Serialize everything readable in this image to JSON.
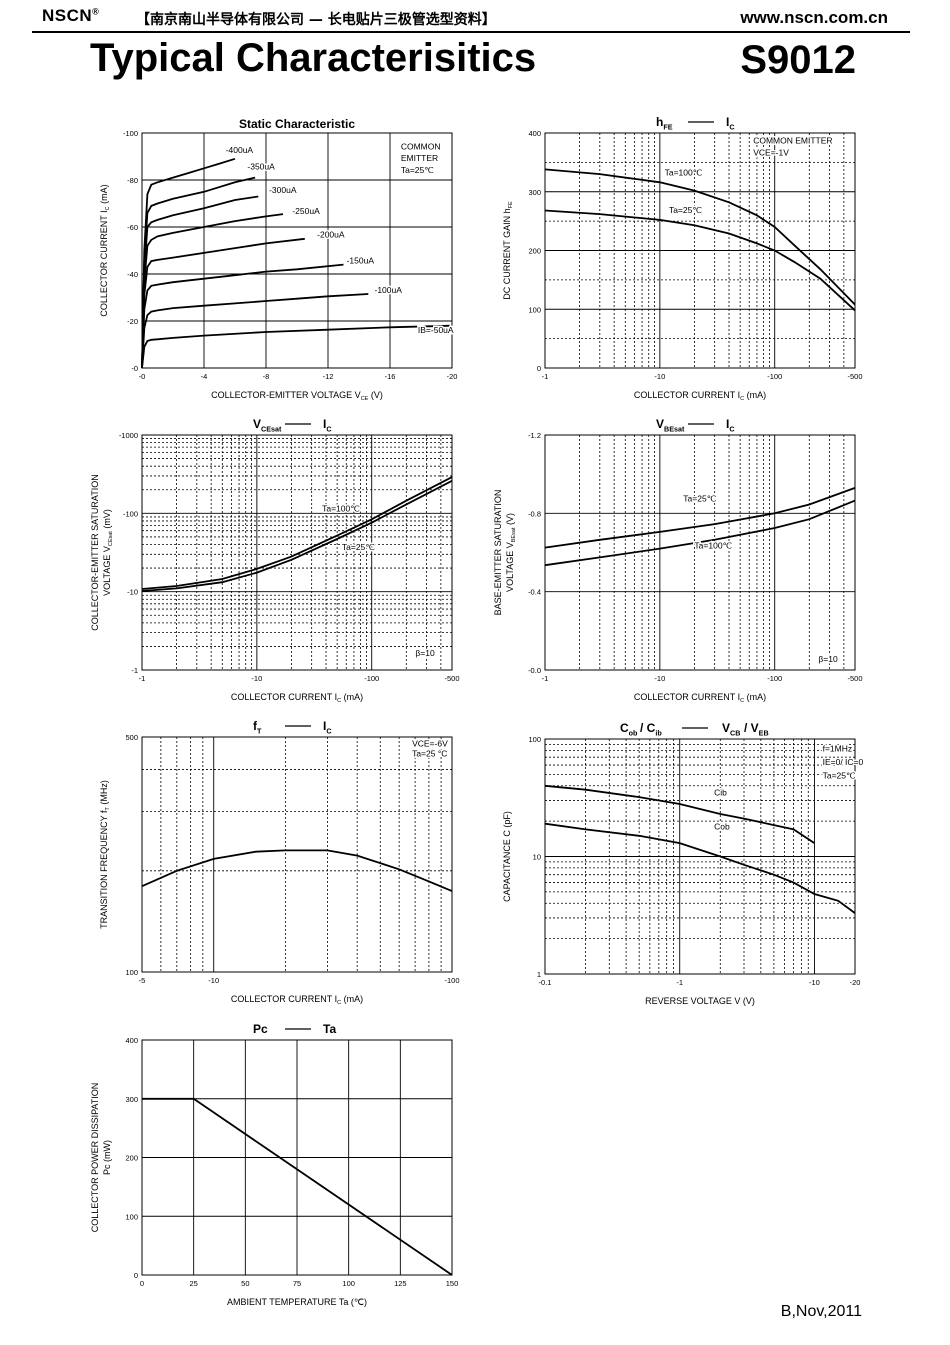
{
  "header": {
    "logo": "NSCN",
    "logo_mark": "®",
    "subtitle": "【南京南山半导体有限公司 — 长电贴片三极管选型资料】",
    "url": "www.nscn.com.cn"
  },
  "page_title": "Typical Characterisitics",
  "part_number": "S9012",
  "footer": "B,Nov,2011",
  "chart_data": [
    {
      "id": "static",
      "type": "line",
      "title": "Static Characteristic",
      "xlabel": "COLLECTOR-EMITTER VOLTAGE",
      "xlabel_sym": "V",
      "xlabel_sub": "CE",
      "xlabel_unit": "(V)",
      "ylabel": "COLLECTOR CURRENT",
      "ylabel_sym": "I",
      "ylabel_sub": "C",
      "ylabel_unit": "(mA)",
      "xscale": "linear",
      "yscale": "linear",
      "xlim": [
        0,
        20
      ],
      "ylim": [
        0,
        100
      ],
      "xticks": [
        0,
        4,
        8,
        12,
        16,
        20
      ],
      "xticklabels": [
        "-0",
        "-4",
        "-8",
        "-12",
        "-16",
        "-20"
      ],
      "yticks": [
        0,
        20,
        40,
        60,
        80,
        100
      ],
      "yticklabels": [
        "-0",
        "-20",
        "-40",
        "-60",
        "-80",
        "-100"
      ],
      "annotations": [
        {
          "text": "COMMON",
          "x": 16.7,
          "y": 93
        },
        {
          "text": "EMITTER",
          "x": 16.7,
          "y": 88
        },
        {
          "text": "Ta=25℃",
          "x": 16.7,
          "y": 83
        },
        {
          "text": "-400uA",
          "x": 5.4,
          "y": 91.5
        },
        {
          "text": "-350uA",
          "x": 6.8,
          "y": 84.5
        },
        {
          "text": "-300uA",
          "x": 8.2,
          "y": 74.5
        },
        {
          "text": "-250uA",
          "x": 9.7,
          "y": 65.5
        },
        {
          "text": "-200uA",
          "x": 11.3,
          "y": 55.5
        },
        {
          "text": "-150uA",
          "x": 13.2,
          "y": 44.5
        },
        {
          "text": "-100uA",
          "x": 15.0,
          "y": 32
        },
        {
          "text": "IB=-50uA",
          "x": 17.8,
          "y": 15
        }
      ],
      "series": [
        {
          "name": "-400uA",
          "x": [
            0,
            0.15,
            0.35,
            0.6,
            1,
            2,
            3,
            4,
            5,
            6
          ],
          "y": [
            0,
            50,
            74,
            78,
            79,
            81,
            83,
            85,
            87,
            89
          ]
        },
        {
          "name": "-350uA",
          "x": [
            0,
            0.15,
            0.35,
            0.6,
            1,
            2,
            4,
            6,
            7.3
          ],
          "y": [
            0,
            46,
            66,
            69,
            70,
            72,
            75,
            79,
            81
          ]
        },
        {
          "name": "-300uA",
          "x": [
            0,
            0.15,
            0.35,
            0.6,
            1,
            2,
            4,
            6,
            7.5
          ],
          "y": [
            0,
            42,
            60,
            62,
            63,
            65,
            68,
            71.5,
            73
          ]
        },
        {
          "name": "-250uA",
          "x": [
            0,
            0.15,
            0.35,
            0.6,
            1,
            2,
            4,
            6,
            8,
            9.1
          ],
          "y": [
            0,
            37,
            52,
            54.5,
            56,
            57.5,
            60,
            62.5,
            64.5,
            65.5
          ]
        },
        {
          "name": "-200uA",
          "x": [
            0,
            0.15,
            0.35,
            0.6,
            1,
            2,
            4,
            6,
            8,
            10.5
          ],
          "y": [
            0,
            31,
            43,
            45.5,
            46,
            47,
            49,
            51,
            53,
            55
          ]
        },
        {
          "name": "-150uA",
          "x": [
            0,
            0.15,
            0.35,
            0.6,
            1,
            2,
            4,
            6,
            8,
            10,
            13
          ],
          "y": [
            0,
            25,
            33,
            35,
            35.5,
            36.5,
            38,
            39.5,
            41,
            42,
            44
          ]
        },
        {
          "name": "-100uA",
          "x": [
            0,
            0.15,
            0.35,
            0.6,
            1,
            2,
            4,
            6,
            8,
            10,
            12,
            14.6
          ],
          "y": [
            0,
            17,
            22.5,
            24,
            24.5,
            25.5,
            26.5,
            27.5,
            28.5,
            29.5,
            30.5,
            31.5
          ]
        },
        {
          "name": "-50uA",
          "x": [
            0,
            0.15,
            0.35,
            0.6,
            1,
            2,
            4,
            8,
            12,
            16,
            20
          ],
          "y": [
            0,
            9,
            11.5,
            12,
            12.2,
            12.8,
            13.8,
            15.3,
            16.3,
            17.3,
            18
          ]
        }
      ]
    },
    {
      "id": "hfe",
      "type": "line",
      "title": "hFE — IC",
      "title_left": "h",
      "title_left_sub": "FE",
      "title_right": "I",
      "title_right_sub": "C",
      "xlabel": "COLLECTOR CURRENT",
      "xlabel_sym": "I",
      "xlabel_sub": "C",
      "xlabel_unit": "(mA)",
      "ylabel": "DC CURRENT GAIN",
      "ylabel_sym": "h",
      "ylabel_sub": "FE",
      "ylabel_unit": "",
      "xscale": "log",
      "yscale": "linear",
      "xlim": [
        1,
        500
      ],
      "ylim": [
        0,
        400
      ],
      "xticks": [
        1,
        10,
        100,
        500
      ],
      "xticklabels": [
        "-1",
        "-10",
        "-100",
        "-500"
      ],
      "yticks": [
        0,
        100,
        200,
        300,
        400
      ],
      "yticklabels": [
        "0",
        "100",
        "200",
        "300",
        "400"
      ],
      "ylinear_dashed": [
        50,
        150,
        250,
        350
      ],
      "annotations": [
        {
          "text": "COMMON EMITTER",
          "x": 65,
          "y": 382
        },
        {
          "text": "VCE=-1V",
          "x": 65,
          "y": 362
        },
        {
          "text": "Ta=100℃",
          "x": 11,
          "y": 328
        },
        {
          "text": "Ta=25℃",
          "x": 12,
          "y": 264
        }
      ],
      "series": [
        {
          "name": "Ta=100℃",
          "x": [
            1,
            3,
            10,
            20,
            40,
            70,
            100,
            150,
            250,
            500
          ],
          "y": [
            338,
            330,
            316,
            302,
            282,
            260,
            240,
            208,
            168,
            108
          ]
        },
        {
          "name": "Ta=25℃",
          "x": [
            1,
            3,
            10,
            20,
            40,
            70,
            100,
            150,
            250,
            500
          ],
          "y": [
            268,
            262,
            252,
            243,
            229,
            212,
            200,
            180,
            152,
            98
          ]
        }
      ]
    },
    {
      "id": "vcesat",
      "type": "line",
      "title": "VCEsat — IC",
      "title_left": "V",
      "title_left_sub": "CEsat",
      "title_right": "I",
      "title_right_sub": "C",
      "xlabel": "COLLECTOR CURRENT",
      "xlabel_sym": "I",
      "xlabel_sub": "C",
      "xlabel_unit": "(mA)",
      "ylabel": "COLLECTOR-EMITTER SATURATION",
      "ylabel2": "VOLTAGE",
      "ylabel_sym": "V",
      "ylabel_sub": "CEsat",
      "ylabel_unit": "(mV)",
      "xscale": "log",
      "yscale": "log",
      "xlim": [
        1,
        500
      ],
      "ylim": [
        1,
        1000
      ],
      "xticks": [
        1,
        10,
        100,
        500
      ],
      "xticklabels": [
        "-1",
        "-10",
        "-100",
        "-500"
      ],
      "yticks": [
        1,
        10,
        100,
        1000
      ],
      "yticklabels": [
        "-1",
        "-10",
        "-100",
        "-1000"
      ],
      "annotations": [
        {
          "text": "Ta=100℃",
          "x": 37,
          "y": 105
        },
        {
          "text": "Ta=25℃",
          "x": 55,
          "y": 34
        },
        {
          "text": "β=10",
          "x": 240,
          "y": 1.5
        }
      ],
      "series": [
        {
          "name": "Ta=100℃",
          "x": [
            1,
            2,
            5,
            10,
            20,
            50,
            100,
            200,
            500
          ],
          "y": [
            10.8,
            11.8,
            14.5,
            19.5,
            28,
            52,
            84,
            145,
            290
          ]
        },
        {
          "name": "Ta=25℃",
          "x": [
            1,
            2,
            5,
            10,
            20,
            50,
            100,
            200,
            500
          ],
          "y": [
            10.2,
            11.0,
            13.2,
            17.5,
            25.5,
            47,
            76,
            130,
            260
          ]
        }
      ]
    },
    {
      "id": "vbesat",
      "type": "line",
      "title": "VBEsat — IC",
      "title_left": "V",
      "title_left_sub": "BEsat",
      "title_right": "I",
      "title_right_sub": "C",
      "xlabel": "COLLECTOR CURRENT",
      "xlabel_sym": "I",
      "xlabel_sub": "C",
      "xlabel_unit": "(mA)",
      "ylabel": "BASE-EMITTER SATURATION",
      "ylabel2": "VOLTAGE",
      "ylabel_sym": "V",
      "ylabel_sub": "BEsat",
      "ylabel_unit": "(V)",
      "xscale": "log",
      "yscale": "linear",
      "xlim": [
        1,
        500
      ],
      "ylim": [
        0,
        1.2
      ],
      "xticks": [
        1,
        10,
        100,
        500
      ],
      "xticklabels": [
        "-1",
        "-10",
        "-100",
        "-500"
      ],
      "yticks": [
        0,
        0.4,
        0.8,
        1.2
      ],
      "yticklabels": [
        "-0.0",
        "-0.4",
        "-0.8",
        "-1.2"
      ],
      "annotations": [
        {
          "text": "Ta=25℃",
          "x": 16,
          "y": 0.86
        },
        {
          "text": "Ta=100℃",
          "x": 20,
          "y": 0.62
        },
        {
          "text": "β=10",
          "x": 240,
          "y": 0.04
        }
      ],
      "series": [
        {
          "name": "Ta=25℃",
          "x": [
            1,
            3,
            10,
            30,
            100,
            200,
            500
          ],
          "y": [
            0.625,
            0.665,
            0.705,
            0.745,
            0.8,
            0.845,
            0.93
          ]
        },
        {
          "name": "Ta=100℃",
          "x": [
            1,
            3,
            10,
            30,
            100,
            200,
            500
          ],
          "y": [
            0.535,
            0.575,
            0.62,
            0.665,
            0.725,
            0.77,
            0.865
          ]
        }
      ]
    },
    {
      "id": "ft",
      "type": "line",
      "title": "fT — IC",
      "title_left": "f",
      "title_left_sub": "T",
      "title_right": "I",
      "title_right_sub": "C",
      "xlabel": "COLLECTOR CURRENT",
      "xlabel_sym": "I",
      "xlabel_sub": "C",
      "xlabel_unit": "(mA)",
      "ylabel": "TRANSITION FREQUENCY",
      "ylabel_sym": "f",
      "ylabel_sub": "T",
      "ylabel_unit": "(MHz)",
      "xscale": "log",
      "yscale": "log",
      "xlim": [
        5,
        100
      ],
      "ylim": [
        100,
        500
      ],
      "xticks": [
        5,
        10,
        100
      ],
      "xticklabels": [
        "-5",
        "-10",
        "-100"
      ],
      "yticks": [
        100,
        500
      ],
      "yticklabels": [
        "100",
        "500"
      ],
      "annotations": [
        {
          "text": "VCE=-6V",
          "x": 68,
          "y": 468
        },
        {
          "text": "Ta=25 °C",
          "x": 68,
          "y": 438
        }
      ],
      "series": [
        {
          "name": "fT",
          "x": [
            5,
            7,
            10,
            15,
            20,
            30,
            40,
            60,
            80,
            100
          ],
          "y": [
            180,
            200,
            217,
            228,
            230,
            230,
            222,
            202,
            186,
            174
          ]
        }
      ]
    },
    {
      "id": "cap",
      "type": "line",
      "title": "Cob/Cib — VCB/VEB",
      "title_left": "C",
      "title_left_sub": "ob",
      "title_mid": "/ C",
      "title_mid_sub": "ib",
      "title_right": "V",
      "title_right_sub": "CB",
      "title_right2": "/ V",
      "title_right2_sub": "EB",
      "xlabel": "REVERSE VOLTAGE",
      "xlabel_sym": "V",
      "xlabel_sub": "",
      "xlabel_unit": "(V)",
      "ylabel": "CAPACITANCE",
      "ylabel_sym": "C",
      "ylabel_sub": "",
      "ylabel_unit": "(pF)",
      "xscale": "log",
      "yscale": "log",
      "xlim": [
        0.1,
        20
      ],
      "ylim": [
        1,
        100
      ],
      "xticks": [
        0.1,
        1,
        10,
        20
      ],
      "xticklabels": [
        "-0.1",
        "-1",
        "-10",
        "-20"
      ],
      "yticks": [
        1,
        10,
        100
      ],
      "yticklabels": [
        "1",
        "10",
        "100"
      ],
      "annotations": [
        {
          "text": "f=1MHz",
          "x": 11.5,
          "y": 78
        },
        {
          "text": "IE=0/ IC=0",
          "x": 11.5,
          "y": 60
        },
        {
          "text": "Ta=25℃",
          "x": 11.5,
          "y": 46
        },
        {
          "text": "Cib",
          "x": 1.8,
          "y": 33
        },
        {
          "text": "Cob",
          "x": 1.8,
          "y": 17
        }
      ],
      "series": [
        {
          "name": "Cib",
          "x": [
            0.1,
            0.2,
            0.5,
            1,
            2,
            3,
            5,
            7,
            10
          ],
          "y": [
            40,
            37,
            32,
            28,
            23,
            21,
            18.5,
            17,
            13
          ]
        },
        {
          "name": "Cob",
          "x": [
            0.1,
            0.2,
            0.5,
            1,
            2,
            3,
            5,
            7,
            10,
            15,
            20
          ],
          "y": [
            19,
            17,
            15,
            13,
            10,
            8.5,
            7,
            6,
            4.8,
            4.2,
            3.3
          ]
        }
      ]
    },
    {
      "id": "pc",
      "type": "line",
      "title": "Pc — Ta",
      "title_left": "Pc",
      "title_left_sub": "",
      "title_right": "Ta",
      "title_right_sub": "",
      "xlabel": "AMBIENT TEMPERATURE",
      "xlabel_sym": "Ta",
      "xlabel_sub": "",
      "xlabel_unit": "(℃)",
      "ylabel": "COLLECTOR POWER DISSIPATION",
      "ylabel2": "Pc",
      "ylabel_sym": "",
      "ylabel_sub": "",
      "ylabel_unit": "(mW)",
      "xscale": "linear",
      "yscale": "linear",
      "xlim": [
        0,
        150
      ],
      "ylim": [
        0,
        400
      ],
      "xticks": [
        0,
        25,
        50,
        75,
        100,
        125,
        150
      ],
      "xticklabels": [
        "0",
        "25",
        "50",
        "75",
        "100",
        "125",
        "150"
      ],
      "yticks": [
        0,
        100,
        200,
        300,
        400
      ],
      "yticklabels": [
        "0",
        "100",
        "200",
        "300",
        "400"
      ],
      "annotations": [],
      "series": [
        {
          "name": "Pc",
          "x": [
            0,
            25,
            150
          ],
          "y": [
            300,
            300,
            0
          ]
        }
      ]
    }
  ]
}
